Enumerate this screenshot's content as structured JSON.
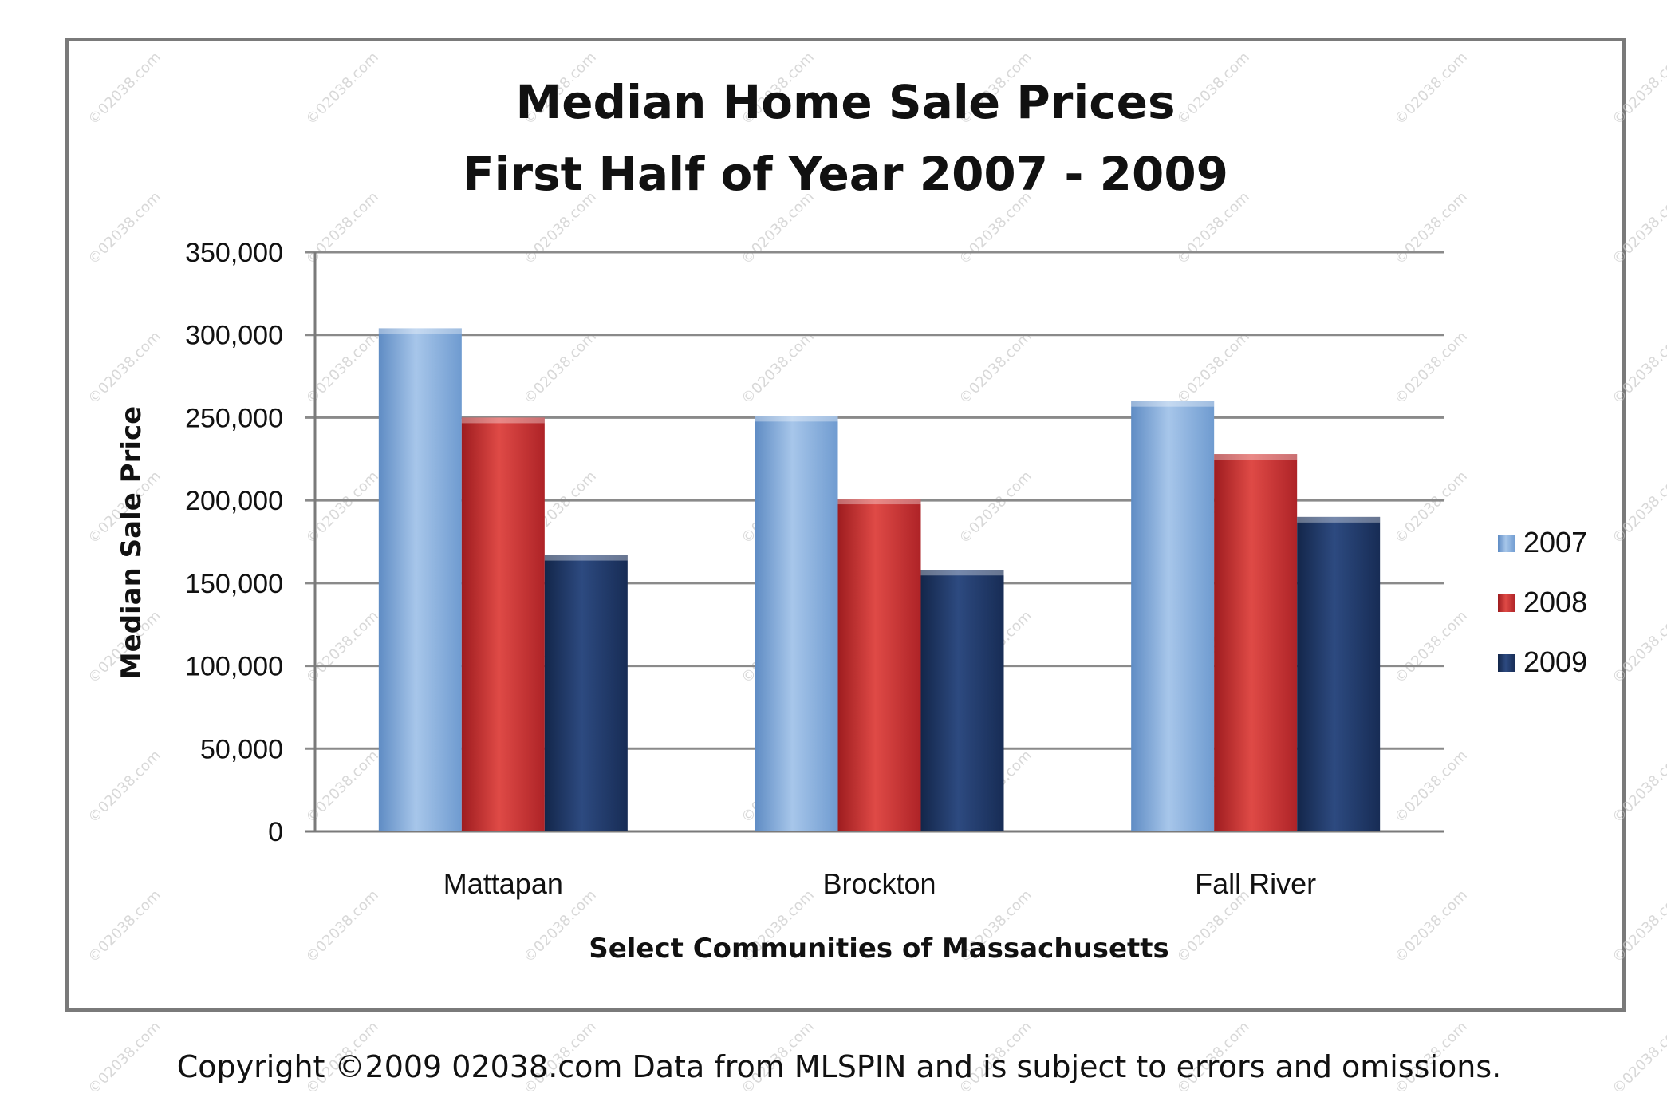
{
  "chart_data": {
    "type": "bar",
    "title": [
      "Median Home Sale Prices",
      "First Half of Year 2007 - 2009"
    ],
    "xlabel": "Select Communities of Massachusetts",
    "ylabel": "Median Sale Price",
    "categories": [
      "Mattapan",
      "Brockton",
      "Fall River"
    ],
    "series": [
      {
        "name": "2007",
        "values": [
          304000,
          251000,
          260000
        ],
        "color": "#7aa6d8"
      },
      {
        "name": "2008",
        "values": [
          250000,
          201000,
          228000
        ],
        "color": "#c0292b"
      },
      {
        "name": "2009",
        "values": [
          167000,
          158000,
          190000
        ],
        "color": "#1d3461"
      }
    ],
    "ylim": [
      0,
      350000
    ],
    "yticks": [
      "0",
      "50,000",
      "100,000",
      "150,000",
      "200,000",
      "250,000",
      "300,000",
      "350,000"
    ],
    "grid": true,
    "legend_position": "right"
  },
  "footer": "Copyright ©2009 02038.com  Data from MLSPIN and is subject to errors and omissions.",
  "watermark": "©02038.com"
}
